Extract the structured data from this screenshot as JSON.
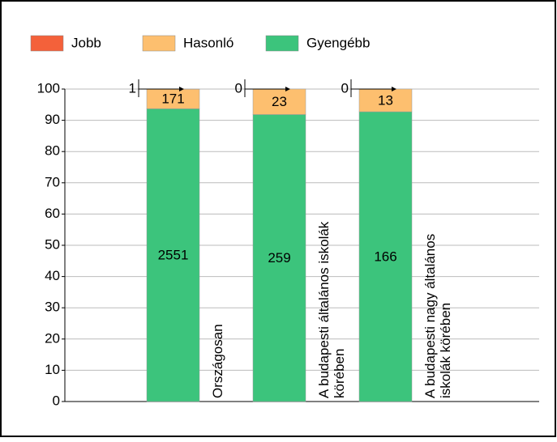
{
  "chart_data": {
    "type": "bar",
    "stacking": "percent",
    "categories": [
      [
        "Országosan"
      ],
      [
        "A budapesti általános iskolák",
        "körében"
      ],
      [
        "A budapesti nagy általános",
        "iskolák körében"
      ]
    ],
    "series": [
      {
        "name": "Gyengébb",
        "color": "#3cc47c",
        "values": [
          2551,
          259,
          166
        ]
      },
      {
        "name": "Hasonló",
        "color": "#fdbf6f",
        "values": [
          171,
          23,
          13
        ]
      },
      {
        "name": "Jobb",
        "color": "#f4613a",
        "values": [
          1,
          0,
          0
        ]
      }
    ],
    "ylim": [
      0,
      100
    ],
    "yticks": [
      0,
      10,
      20,
      30,
      40,
      50,
      60,
      70,
      80,
      90,
      100
    ],
    "grid": true,
    "legend": "top"
  }
}
